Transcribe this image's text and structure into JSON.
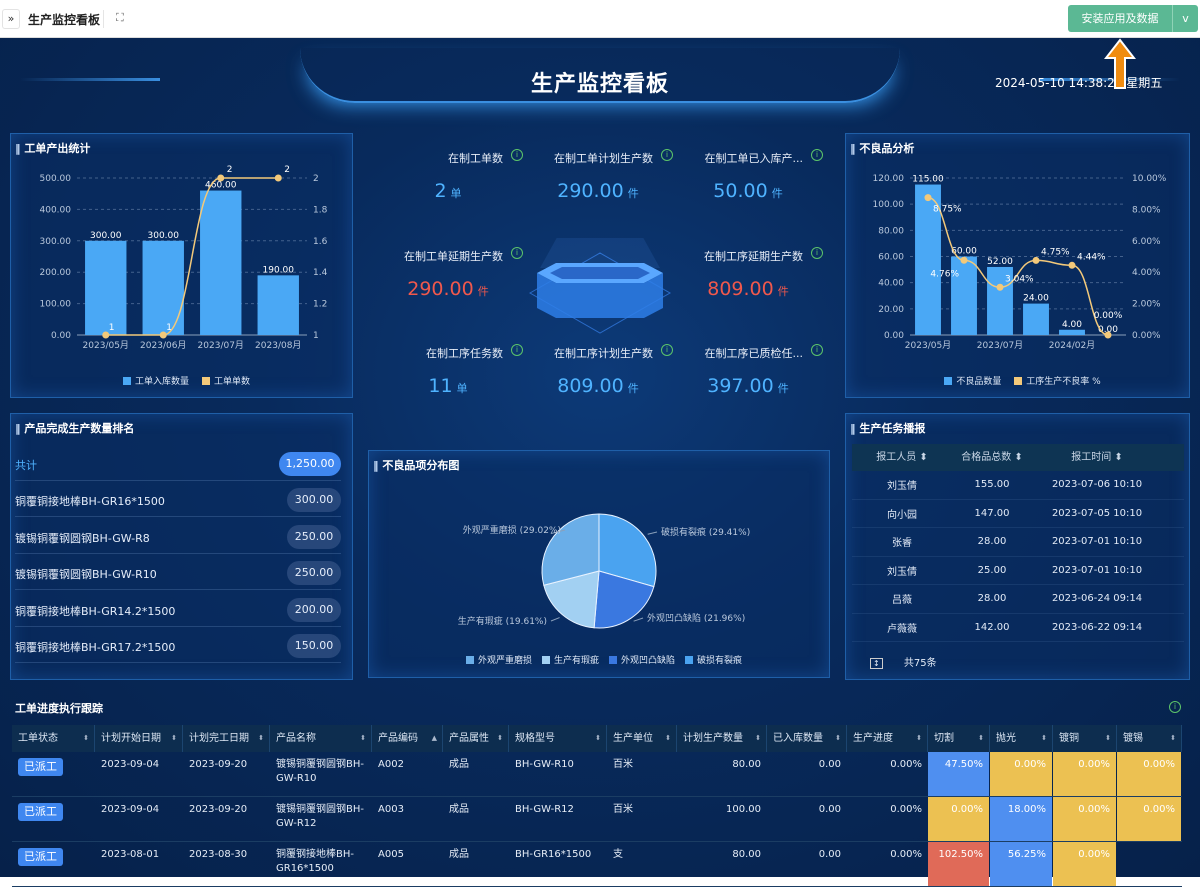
{
  "topbar": {
    "title": "生产监控看板",
    "expand_icon": "»",
    "fullscreen_icon": "⛶",
    "install_label": "安装应用及数据",
    "dropdown_icon": "v"
  },
  "header": {
    "title": "生产监控看板",
    "datetime": "2024-05-10 14:38:28 星期五"
  },
  "output_stats": {
    "title": "工单产出统计",
    "chart_data": {
      "type": "bar",
      "categories": [
        "2023/05月",
        "2023/06月",
        "2023/07月",
        "2023/08月"
      ],
      "series": [
        {
          "name": "工单入库数量",
          "type": "bar",
          "values": [
            300,
            300,
            460,
            190
          ],
          "labels": [
            "300.00",
            "300.00",
            "460.00",
            "190.00"
          ],
          "color": "#4aa8f5"
        },
        {
          "name": "工单单数",
          "type": "line",
          "values": [
            1,
            1,
            2,
            2
          ],
          "labels": [
            "1",
            "1",
            "2",
            "2"
          ],
          "color": "#f3c97a",
          "axis": "right"
        }
      ],
      "ylim": [
        0,
        500
      ],
      "yticks": [
        "0.00",
        "100.00",
        "200.00",
        "300.00",
        "400.00",
        "500.00"
      ],
      "y2lim": [
        1,
        2
      ],
      "y2ticks": [
        "1",
        "1.2",
        "1.4",
        "1.6",
        "1.8",
        "2"
      ],
      "grid": true,
      "legend": "bottom"
    }
  },
  "ranking": {
    "title": "产品完成生产数量排名",
    "total": {
      "name": "共计",
      "value": "1,250.00"
    },
    "items": [
      {
        "name": "铜覆铜接地棒BH-GR16*1500",
        "value": "300.00"
      },
      {
        "name": "镀锡铜覆钢圆钢BH-GW-R8",
        "value": "250.00"
      },
      {
        "name": "镀锡铜覆钢圆钢BH-GW-R10",
        "value": "250.00"
      },
      {
        "name": "铜覆铜接地棒BH-GR14.2*1500",
        "value": "200.00"
      },
      {
        "name": "铜覆铜接地棒BH-GR17.2*1500",
        "value": "150.00"
      }
    ]
  },
  "kpis": [
    {
      "label": "在制工单数",
      "value": "2",
      "unit": "单",
      "color": "#4fb3ff"
    },
    {
      "label": "在制工单计划生产数",
      "value": "290.00",
      "unit": "件",
      "color": "#4fb3ff"
    },
    {
      "label": "在制工单已入库产...",
      "value": "50.00",
      "unit": "件",
      "color": "#4fb3ff"
    },
    {
      "label": "在制工单延期生产数",
      "value": "290.00",
      "unit": "件",
      "color": "#f0584c"
    },
    {
      "label": "在制工序延期生产数",
      "value": "809.00",
      "unit": "件",
      "color": "#f0584c"
    },
    {
      "label": "在制工序任务数",
      "value": "11",
      "unit": "单",
      "color": "#4fb3ff"
    },
    {
      "label": "在制工序计划生产数",
      "value": "809.00",
      "unit": "件",
      "color": "#4fb3ff"
    },
    {
      "label": "在制工序已质检任...",
      "value": "397.00",
      "unit": "件",
      "color": "#4fb3ff"
    }
  ],
  "defect_analysis": {
    "title": "不良品分析",
    "chart_data": {
      "type": "bar",
      "categories": [
        "2023/05月",
        "",
        "2023/07月",
        "",
        "2024/02月",
        ""
      ],
      "series": [
        {
          "name": "不良品数量",
          "type": "bar",
          "values": [
            115,
            60,
            52,
            24,
            4,
            0
          ],
          "labels": [
            "115.00",
            "60.00",
            "52.00",
            "24.00",
            "4.00",
            "0.00"
          ],
          "color": "#4aa8f5"
        },
        {
          "name": "工序生产不良率 %",
          "type": "line",
          "values": [
            8.75,
            4.76,
            3.04,
            4.75,
            4.44,
            0.0
          ],
          "labels": [
            "8.75%",
            "4.76%",
            "3.04%",
            "4.75%",
            "4.44%",
            "0.00%"
          ],
          "color": "#f3c97a",
          "axis": "right"
        }
      ],
      "ylim": [
        0,
        120
      ],
      "yticks": [
        "0.00",
        "20.00",
        "40.00",
        "60.00",
        "80.00",
        "100.00",
        "120.00"
      ],
      "y2lim": [
        0,
        10
      ],
      "y2ticks": [
        "0.00%",
        "2.00%",
        "4.00%",
        "6.00%",
        "8.00%",
        "10.00%"
      ],
      "grid": true,
      "legend": "bottom"
    }
  },
  "defect_pie": {
    "title": "不良品项分布图",
    "chart_data": {
      "type": "pie",
      "slices": [
        {
          "name": "破损有裂痕",
          "value": 29.41,
          "label": "破损有裂痕 (29.41%)",
          "color": "#4aa3f0"
        },
        {
          "name": "外观凹凸缺陷",
          "value": 21.96,
          "label": "外观凹凸缺陷 (21.96%)",
          "color": "#3a78e0"
        },
        {
          "name": "生产有瑕疵",
          "value": 19.61,
          "label": "生产有瑕疵 (19.61%)",
          "color": "#a2d0f2"
        },
        {
          "name": "外观严重磨损",
          "value": 29.02,
          "label": "外观严重磨损 (29.02%)",
          "color": "#6aaee8"
        }
      ],
      "legend_order": [
        "外观严重磨损",
        "生产有瑕疵",
        "外观凹凸缺陷",
        "破损有裂痕"
      ],
      "legend": "bottom"
    }
  },
  "task_report": {
    "title": "生产任务播报",
    "columns": [
      "报工人员",
      "合格品总数",
      "报工时间"
    ],
    "rows": [
      [
        "刘玉倩",
        "155.00",
        "2023-07-06 10:10"
      ],
      [
        "向小园",
        "147.00",
        "2023-07-05 10:10"
      ],
      [
        "张睿",
        "28.00",
        "2023-07-01 10:10"
      ],
      [
        "刘玉倩",
        "25.00",
        "2023-07-01 10:10"
      ],
      [
        "吕薇",
        "28.00",
        "2023-06-24 09:14"
      ],
      [
        "卢薇薇",
        "142.00",
        "2023-06-22 09:14"
      ]
    ],
    "total": "共75条"
  },
  "progress": {
    "title": "工单进度执行跟踪",
    "columns": [
      "工单状态",
      "计划开始日期",
      "计划完工日期",
      "产品名称",
      "产品编码",
      "产品属性",
      "规格型号",
      "生产单位",
      "计划生产数量",
      "已入库数量",
      "生产进度",
      "切割",
      "抛光",
      "镀铜",
      "镀锡"
    ],
    "rows": [
      {
        "status": "已派工",
        "start": "2023-09-04",
        "end": "2023-09-20",
        "name": "镀锡铜覆钢圆钢BH-GW-R10",
        "code": "A002",
        "attr": "成品",
        "spec": "BH-GW-R10",
        "unit": "百米",
        "plan": "80.00",
        "stored": "0.00",
        "progress": "0.00%",
        "steps": [
          {
            "v": "47.50%",
            "c": "blue"
          },
          {
            "v": "0.00%",
            "c": "yellow"
          },
          {
            "v": "0.00%",
            "c": "yellow"
          },
          {
            "v": "0.00%",
            "c": "yellow"
          }
        ]
      },
      {
        "status": "已派工",
        "start": "2023-09-04",
        "end": "2023-09-20",
        "name": "镀锡铜覆钢圆钢BH-GW-R12",
        "code": "A003",
        "attr": "成品",
        "spec": "BH-GW-R12",
        "unit": "百米",
        "plan": "100.00",
        "stored": "0.00",
        "progress": "0.00%",
        "steps": [
          {
            "v": "0.00%",
            "c": "yellow"
          },
          {
            "v": "18.00%",
            "c": "blue"
          },
          {
            "v": "0.00%",
            "c": "yellow"
          },
          {
            "v": "0.00%",
            "c": "yellow"
          }
        ]
      },
      {
        "status": "已派工",
        "start": "2023-08-01",
        "end": "2023-08-30",
        "name": "铜覆钢接地棒BH-GR16*1500",
        "code": "A005",
        "attr": "成品",
        "spec": "BH-GR16*1500",
        "unit": "支",
        "plan": "80.00",
        "stored": "0.00",
        "progress": "0.00%",
        "steps": [
          {
            "v": "102.50%",
            "c": "red"
          },
          {
            "v": "56.25%",
            "c": "blue"
          },
          {
            "v": "0.00%",
            "c": "yellow"
          },
          {
            "v": "",
            "c": "none"
          }
        ]
      }
    ]
  }
}
